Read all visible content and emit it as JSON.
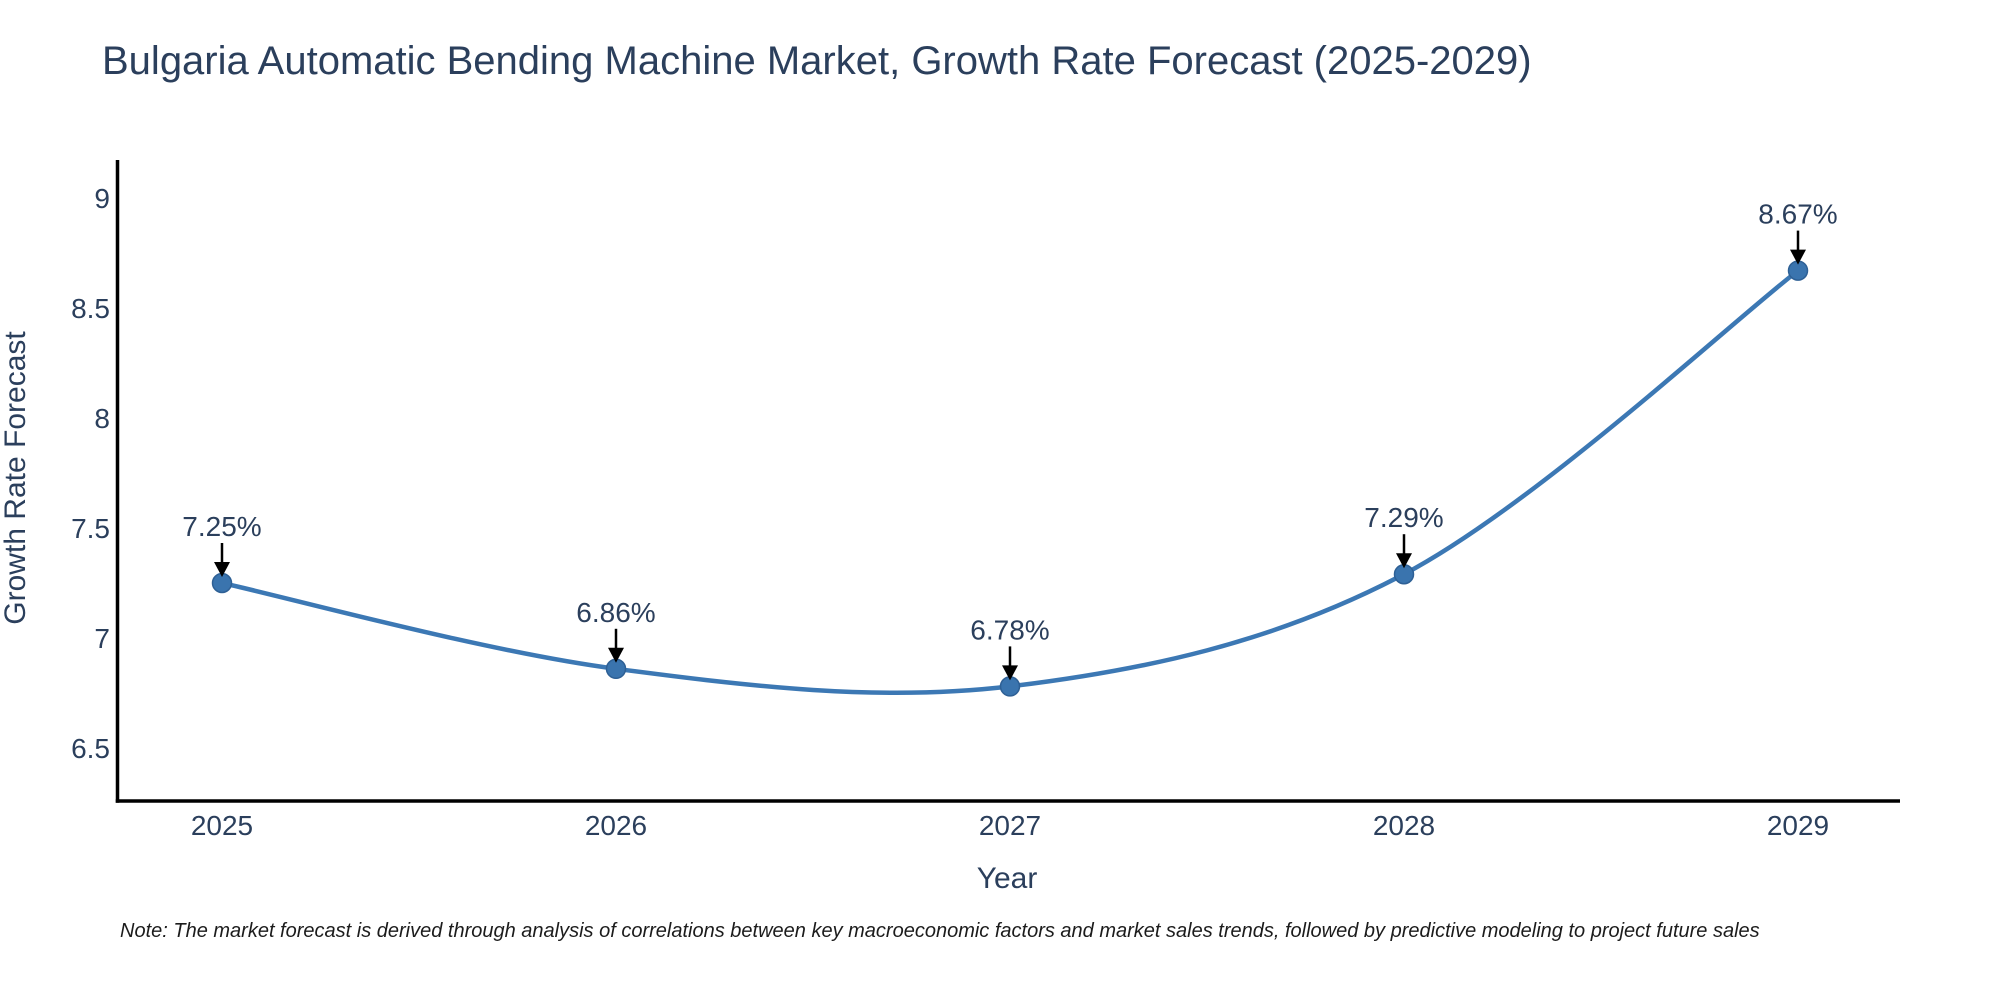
{
  "page": {
    "background": "#ffffff"
  },
  "chart_data": {
    "type": "line",
    "title": "Bulgaria Automatic Bending Machine Market, Growth Rate Forecast (2025-2029)",
    "xlabel": "Year",
    "ylabel": "Growth Rate Forecast",
    "x": [
      2025,
      2026,
      2027,
      2028,
      2029
    ],
    "series": [
      {
        "name": "Growth Rate Forecast",
        "values": [
          7.25,
          6.86,
          6.78,
          7.29,
          8.67
        ]
      }
    ],
    "point_labels": [
      "7.25%",
      "6.86%",
      "6.78%",
      "7.29%",
      "8.67%"
    ],
    "yticks": [
      6.5,
      7,
      7.5,
      8,
      8.5,
      9
    ],
    "xticks": [
      "2025",
      "2026",
      "2027",
      "2028",
      "2029"
    ],
    "ylim": [
      6.26,
      9.17
    ],
    "grid": false,
    "legend_position": "none",
    "line_shape": "spline",
    "annotations_style": "value-label-with-down-arrow",
    "colors": {
      "line": "#3c78b4",
      "marker": "#3a74ae",
      "marker_edge": "#2e6095",
      "axis_line": "#000000",
      "tick_text": "#2b3f5c",
      "title_text": "#2b3f5c",
      "annotation_text": "#2b3f5c",
      "annotation_arrow": "#000000"
    }
  },
  "note": {
    "text": "Note: The market forecast is derived through analysis of correlations between key macroeconomic factors and market sales trends, followed by predictive modeling to project future sales"
  }
}
